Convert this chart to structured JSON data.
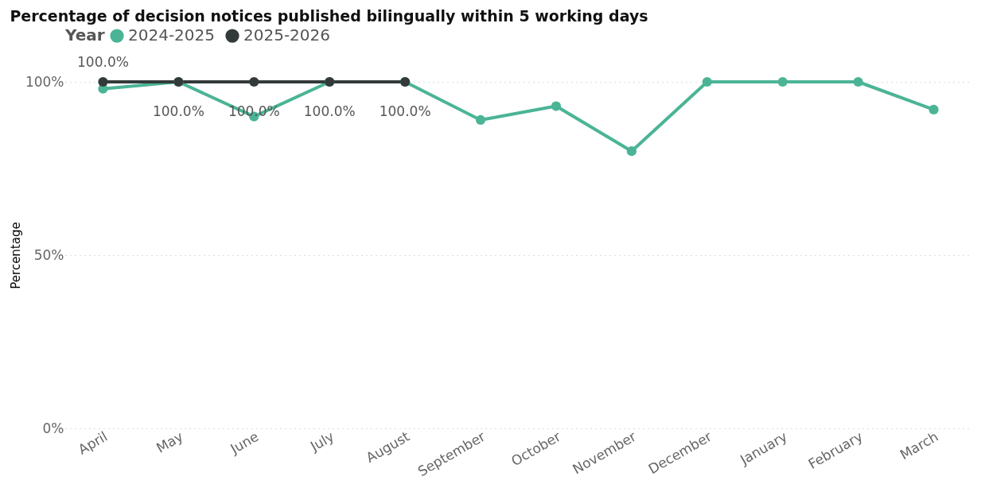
{
  "chart_data": {
    "type": "line",
    "title": "Percentage of decision notices published bilingually within 5 working days",
    "ylabel": "Percentage",
    "legend_title": "Year",
    "legend": "top left",
    "grid": "y",
    "marker": "circle",
    "line_style": "solid",
    "categories": [
      "April",
      "May",
      "June",
      "July",
      "August",
      "September",
      "October",
      "November",
      "December",
      "January",
      "February",
      "March"
    ],
    "ylim": [
      0,
      100
    ],
    "yticks": [
      {
        "value": 0,
        "label": "0%"
      },
      {
        "value": 50,
        "label": "50%"
      },
      {
        "value": 100,
        "label": "100%"
      }
    ],
    "series": [
      {
        "name": "2024-2025",
        "color": "#4bb496",
        "values": [
          98,
          100,
          90,
          100,
          100,
          89,
          93,
          80,
          100,
          100,
          100,
          92
        ]
      },
      {
        "name": "2025-2026",
        "color": "#333a3a",
        "values": [
          100,
          100,
          100,
          100,
          100,
          null,
          null,
          null,
          null,
          null,
          null,
          null
        ],
        "value_labels": [
          "100.0%",
          "100.0%",
          "100.0%",
          "100.0%",
          "100.0%",
          null,
          null,
          null,
          null,
          null,
          null,
          null
        ]
      }
    ]
  }
}
